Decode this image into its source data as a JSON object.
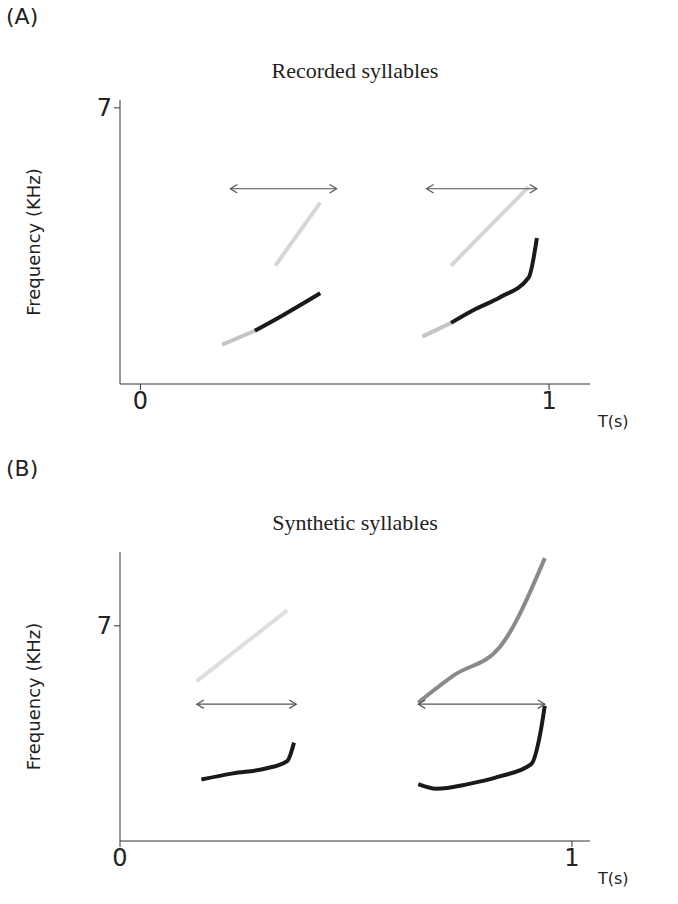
{
  "chart_data": [
    {
      "type": "line",
      "panel": "(A)",
      "title": "Recorded syllables",
      "x_label": "T(s)",
      "y_label": "Frequency  (KHz)",
      "xlim": [
        -0.05,
        1.1
      ],
      "xticks": [
        0,
        1
      ],
      "ylim": [
        0,
        7.2
      ],
      "yticks": [
        7
      ],
      "series": [
        {
          "color": "#c4c4c4",
          "x": [
            0.2,
            0.28
          ],
          "values": [
            1.0,
            1.35
          ]
        },
        {
          "color": "#1a1a1a",
          "x": [
            0.28,
            0.35,
            0.44
          ],
          "values": [
            1.35,
            1.75,
            2.3
          ]
        },
        {
          "color": "#d6d6d6",
          "x": [
            0.33,
            0.44
          ],
          "values": [
            3.0,
            4.6
          ]
        },
        {
          "color": "#c4c4c4",
          "x": [
            0.69,
            0.76
          ],
          "values": [
            1.2,
            1.55
          ]
        },
        {
          "color": "#1a1a1a",
          "x": [
            0.76,
            0.82,
            0.88,
            0.95,
            0.97
          ],
          "values": [
            1.55,
            1.9,
            2.2,
            2.7,
            3.7
          ]
        },
        {
          "color": "#d6d6d6",
          "x": [
            0.76,
            0.95
          ],
          "values": [
            3.0,
            5.0
          ]
        }
      ],
      "arrows": [
        {
          "x": [
            0.22,
            0.48
          ],
          "y": 4.95
        },
        {
          "x": [
            0.7,
            0.97
          ],
          "y": 4.95
        }
      ]
    },
    {
      "type": "line",
      "panel": "(B)",
      "title": "Synthetic syllables",
      "x_label": "T(s)",
      "y_label": "Frequency  (KHz)",
      "xlim": [
        0,
        1.04
      ],
      "xticks": [
        0,
        1
      ],
      "ylim": [
        0,
        9.4
      ],
      "yticks": [
        7
      ],
      "series": [
        {
          "color": "#1a1a1a",
          "x": [
            0.18,
            0.25,
            0.32,
            0.37,
            0.385
          ],
          "values": [
            2.0,
            2.2,
            2.35,
            2.6,
            3.2
          ]
        },
        {
          "color": "#dedede",
          "x": [
            0.17,
            0.37
          ],
          "values": [
            5.2,
            7.5
          ]
        },
        {
          "color": "#1a1a1a",
          "x": [
            0.66,
            0.7,
            0.77,
            0.84,
            0.91,
            0.93,
            0.94
          ],
          "values": [
            1.85,
            1.7,
            1.85,
            2.1,
            2.5,
            3.5,
            4.4
          ]
        },
        {
          "color": "#8a8a8a",
          "x": [
            0.66,
            0.74,
            0.84,
            0.94
          ],
          "values": [
            4.5,
            5.4,
            6.3,
            9.2
          ]
        }
      ],
      "arrows": [
        {
          "x": [
            0.17,
            0.39
          ],
          "y": 4.45
        },
        {
          "x": [
            0.66,
            0.94
          ],
          "y": 4.45
        }
      ]
    }
  ]
}
